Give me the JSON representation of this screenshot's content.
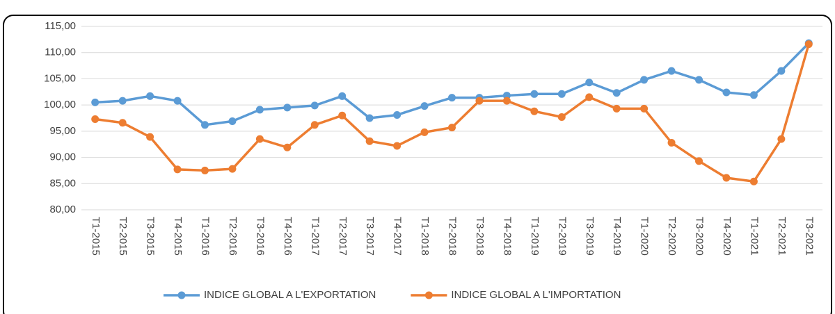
{
  "chart_data": {
    "type": "line",
    "categories": [
      "T1-2015",
      "T2-2015",
      "T3-2015",
      "T4-2015",
      "T1-2016",
      "T2-2016",
      "T3-2016",
      "T4-2016",
      "T1-2017",
      "T2-2017",
      "T3-2017",
      "T4-2017",
      "T1-2018",
      "T2-2018",
      "T3-2018",
      "T4-2018",
      "T1-2019",
      "T2-2019",
      "T3-2019",
      "T4-2019",
      "T1-2020",
      "T2-2020",
      "T3-2020",
      "T4-2020",
      "T1-2021",
      "T2-2021",
      "T3-2021"
    ],
    "series": [
      {
        "name": "INDICE GLOBAL A L'EXPORTATION",
        "color": "#5b9bd5",
        "values": [
          100.5,
          100.8,
          101.7,
          100.8,
          96.2,
          96.9,
          99.1,
          99.5,
          99.9,
          101.7,
          97.5,
          98.1,
          99.8,
          101.4,
          101.4,
          101.8,
          102.1,
          102.1,
          104.3,
          102.3,
          104.8,
          106.5,
          104.8,
          102.4,
          101.9,
          106.5,
          111.8
        ]
      },
      {
        "name": "INDICE GLOBAL A L'IMPORTATION",
        "color": "#ed7d31",
        "values": [
          97.3,
          96.6,
          93.9,
          87.7,
          87.5,
          87.8,
          93.5,
          91.9,
          96.2,
          98.0,
          93.1,
          92.2,
          94.8,
          95.7,
          100.8,
          100.8,
          98.8,
          97.7,
          101.5,
          99.3,
          99.3,
          92.8,
          89.3,
          86.1,
          85.4,
          93.5,
          111.6
        ]
      }
    ],
    "ylim": [
      80,
      115
    ],
    "yticks": [
      {
        "value": 80,
        "label": "80,00"
      },
      {
        "value": 85,
        "label": "85,00"
      },
      {
        "value": 90,
        "label": "90,00"
      },
      {
        "value": 95,
        "label": "95,00"
      },
      {
        "value": 100,
        "label": "100,00"
      },
      {
        "value": 105,
        "label": "105,00"
      },
      {
        "value": 110,
        "label": "110,00"
      },
      {
        "value": 115,
        "label": "115,00"
      }
    ],
    "grid": true,
    "legend": "bottom"
  }
}
